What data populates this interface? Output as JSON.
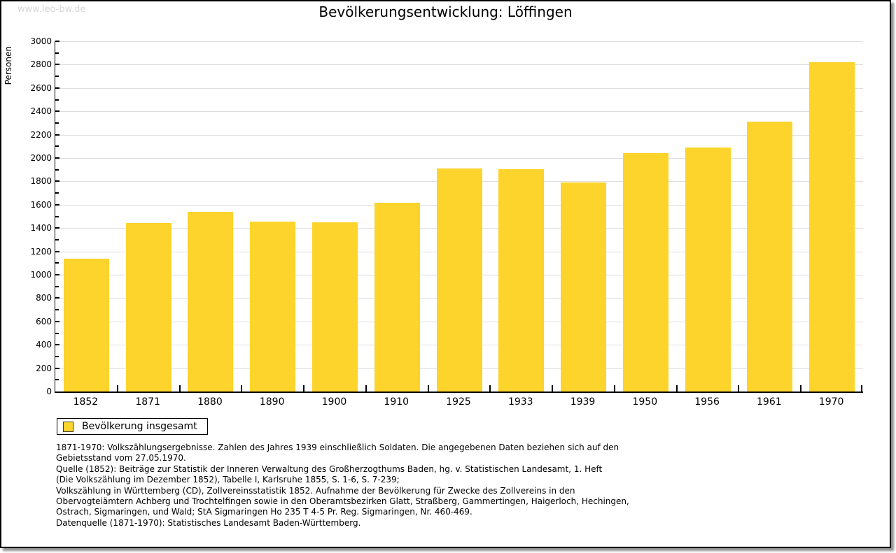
{
  "watermark": "www.leo-bw.de",
  "title": "Bevölkerungsentwicklung: Löffingen",
  "colors": {
    "bar": "#FCD42B",
    "grid": "#DDDDDD",
    "axis": "#000000",
    "watermark": "#D7D7D7",
    "frame_border": "#000000",
    "shadow": "#8F8F8F"
  },
  "legend": {
    "label": "Bevölkerung insgesamt",
    "swatch_color": "#FCD42B"
  },
  "chart_data": {
    "type": "bar",
    "title": "Bevölkerungsentwicklung: Löffingen",
    "ylabel": "Personen",
    "xlabel": "",
    "categories": [
      "1852",
      "1871",
      "1880",
      "1890",
      "1900",
      "1910",
      "1925",
      "1933",
      "1939",
      "1950",
      "1956",
      "1961",
      "1970"
    ],
    "values": [
      1140,
      1444,
      1540,
      1456,
      1450,
      1618,
      1912,
      1903,
      1789,
      2040,
      2090,
      2311,
      2823
    ],
    "series_name": "Bevölkerung insgesamt",
    "ylim": [
      0,
      3000
    ],
    "ytick_step": 200,
    "yminor_step": 100,
    "grid": true,
    "legend_position": "bottom-left",
    "bar_color": "#FCD42B"
  },
  "footnotes": {
    "lines": [
      "1871-1970: Volkszählungsergebnisse. Zahlen des Jahres 1939 einschließlich Soldaten. Die angegebenen Daten beziehen sich auf den",
      "Gebietsstand vom 27.05.1970.",
      "Quelle (1852): Beiträge zur Statistik der Inneren Verwaltung des Großherzogthums Baden, hg. v. Statistischen Landesamt, 1. Heft",
      "(Die Volkszählung im Dezember 1852), Tabelle I, Karlsruhe 1855, S. 1-6, S. 7-239;",
      "Volkszählung in Württemberg (CD), Zollvereinsstatistik 1852. Aufnahme der Bevölkerung für Zwecke des Zollvereins in den",
      "Obervogteiämtern Achberg und Trochtelfingen sowie in den Oberamtsbezirken Glatt, Straßberg, Gammertingen, Haigerloch, Hechingen,",
      "Ostrach, Sigmaringen, und Wald; StA Sigmaringen Ho 235 T 4-5 Pr. Reg. Sigmaringen, Nr. 460-469."
    ],
    "datasource": "Datenquelle (1871-1970): Statistisches Landesamt Baden-Württemberg."
  }
}
